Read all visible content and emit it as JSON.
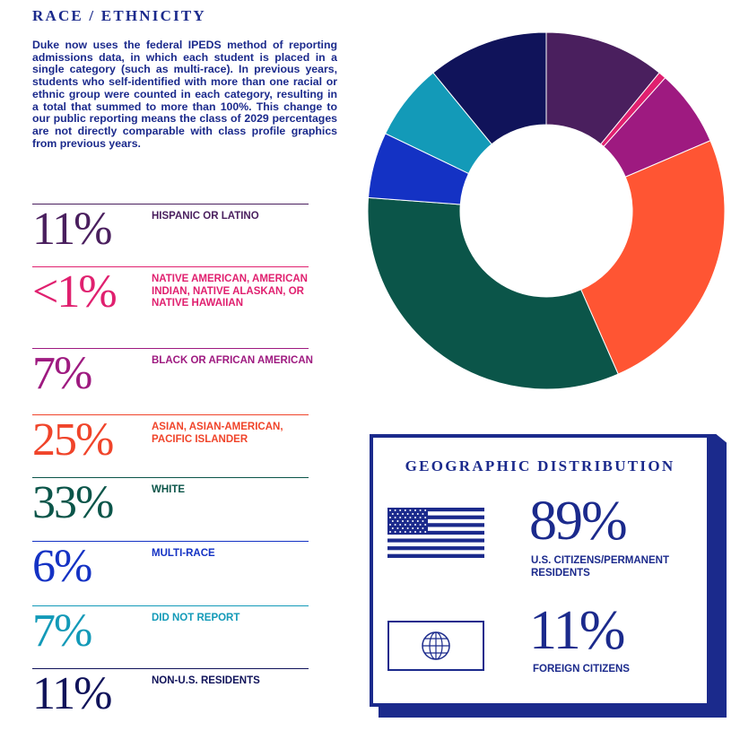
{
  "section_title": "RACE / ETHNICITY",
  "intro": "Duke now uses the federal IPEDS method of reporting admissions data, in which each student is placed in a single category (such as multi-race). In previous years, students who self-identified with more than one racial or ethnic group were counted in each category, resulting in a total that summed to more than 100%. This change to our public reporting means the class of 2029 percentages are not directly comparable with class profile graphics from previous years.",
  "rows": [
    {
      "pct": "11%",
      "label": "HISPANIC OR LATINO",
      "color": "#4a1f5e"
    },
    {
      "pct": "<1%",
      "label": "NATIVE AMERICAN, AMERICAN INDIAN, NATIVE ALASKAN, OR NATIVE HAWAIIAN",
      "color": "#e0206f"
    },
    {
      "pct": "7%",
      "label": "BLACK OR AFRICAN AMERICAN",
      "color": "#9e1a80"
    },
    {
      "pct": "25%",
      "label": "ASIAN, ASIAN-AMERICAN, PACIFIC ISLANDER",
      "color": "#f0442a"
    },
    {
      "pct": "33%",
      "label": "WHITE",
      "color": "#0b5549"
    },
    {
      "pct": "6%",
      "label": "MULTI-RACE",
      "color": "#1432c4"
    },
    {
      "pct": "7%",
      "label": "DID NOT REPORT",
      "color": "#139ab8"
    },
    {
      "pct": "11%",
      "label": "NON-U.S. RESIDENTS",
      "color": "#10135a"
    }
  ],
  "chart_data": {
    "type": "pie",
    "donut": true,
    "categories": [
      "HISPANIC OR LATINO",
      "NATIVE AMERICAN, AMERICAN INDIAN, NATIVE ALASKAN, OR NATIVE HAWAIIAN",
      "BLACK OR AFRICAN AMERICAN",
      "ASIAN, ASIAN-AMERICAN, PACIFIC ISLANDER",
      "WHITE",
      "MULTI-RACE",
      "DID NOT REPORT",
      "NON-U.S. RESIDENTS"
    ],
    "values": [
      11,
      0.7,
      7,
      25,
      33,
      6,
      7,
      11
    ],
    "colors": [
      "#4a1f5e",
      "#e0206f",
      "#9e1a80",
      "#ff5533",
      "#0b5549",
      "#1432c4",
      "#139ab8",
      "#10135a"
    ]
  },
  "geo": {
    "title": "GEOGRAPHIC DISTRIBUTION",
    "us_pct": "89%",
    "us_label": "U.S. CITIZENS/PERMANENT RESIDENTS",
    "us_icon": "us-flag-icon",
    "foreign_pct": "11%",
    "foreign_label": "FOREIGN CITIZENS",
    "foreign_icon": "globe-flag-icon",
    "color": "#1b2a8c"
  }
}
